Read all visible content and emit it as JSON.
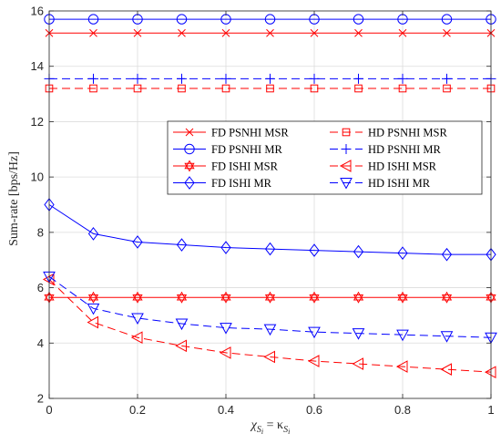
{
  "chart_data": {
    "type": "line",
    "xlabel_main": "χ",
    "xlabel_sub": "S",
    "xlabel_subsub": "i",
    "xlabel_eq": " = κ",
    "ylabel": "Sum-rate [bps/Hz]",
    "xlim": [
      0,
      1
    ],
    "ylim": [
      2,
      16
    ],
    "xticks": [
      0,
      0.2,
      0.4,
      0.6,
      0.8,
      1
    ],
    "xtick_labels": [
      "0",
      "0.2",
      "0.4",
      "0.6",
      "0.8",
      "1"
    ],
    "yticks": [
      2,
      4,
      6,
      8,
      10,
      12,
      14,
      16
    ],
    "ytick_labels": [
      "2",
      "4",
      "6",
      "8",
      "10",
      "12",
      "14",
      "16"
    ],
    "grid": true,
    "legend_position": "upper-right",
    "x": [
      0,
      0.1,
      0.2,
      0.3,
      0.4,
      0.5,
      0.6,
      0.7,
      0.8,
      0.9,
      1
    ],
    "series": [
      {
        "name": "FD PSNHI MSR",
        "color": "#ff0000",
        "dash": "solid",
        "marker": "x",
        "values": [
          15.2,
          15.2,
          15.2,
          15.2,
          15.2,
          15.2,
          15.2,
          15.2,
          15.2,
          15.2,
          15.2
        ]
      },
      {
        "name": "HD PSNHI MSR",
        "color": "#ff0000",
        "dash": "dashed",
        "marker": "square",
        "values": [
          13.2,
          13.2,
          13.2,
          13.2,
          13.2,
          13.2,
          13.2,
          13.2,
          13.2,
          13.2,
          13.2
        ]
      },
      {
        "name": "FD PSNHI MR",
        "color": "#0000ff",
        "dash": "solid",
        "marker": "circle",
        "values": [
          15.7,
          15.7,
          15.7,
          15.7,
          15.7,
          15.7,
          15.7,
          15.7,
          15.7,
          15.7,
          15.7
        ]
      },
      {
        "name": "HD PSNHI MR",
        "color": "#0000ff",
        "dash": "dashed",
        "marker": "plus",
        "values": [
          13.55,
          13.55,
          13.55,
          13.55,
          13.55,
          13.55,
          13.55,
          13.55,
          13.55,
          13.55,
          13.55
        ]
      },
      {
        "name": "FD ISHI MSR",
        "color": "#ff0000",
        "dash": "solid",
        "marker": "hexagram",
        "values": [
          5.65,
          5.65,
          5.65,
          5.65,
          5.65,
          5.65,
          5.65,
          5.65,
          5.65,
          5.65,
          5.65
        ]
      },
      {
        "name": "HD ISHI MSR",
        "color": "#ff0000",
        "dash": "dashed",
        "marker": "triangle-left",
        "values": [
          6.3,
          4.75,
          4.2,
          3.9,
          3.65,
          3.5,
          3.35,
          3.25,
          3.15,
          3.05,
          2.95
        ]
      },
      {
        "name": "FD ISHI MR",
        "color": "#0000ff",
        "dash": "solid",
        "marker": "diamond",
        "values": [
          9.0,
          7.95,
          7.65,
          7.55,
          7.45,
          7.4,
          7.35,
          7.3,
          7.25,
          7.2,
          7.2
        ]
      },
      {
        "name": "HD ISHI MR",
        "color": "#0000ff",
        "dash": "dashed",
        "marker": "triangle-down",
        "values": [
          6.4,
          5.25,
          4.9,
          4.7,
          4.55,
          4.5,
          4.4,
          4.35,
          4.3,
          4.25,
          4.2
        ]
      }
    ]
  }
}
